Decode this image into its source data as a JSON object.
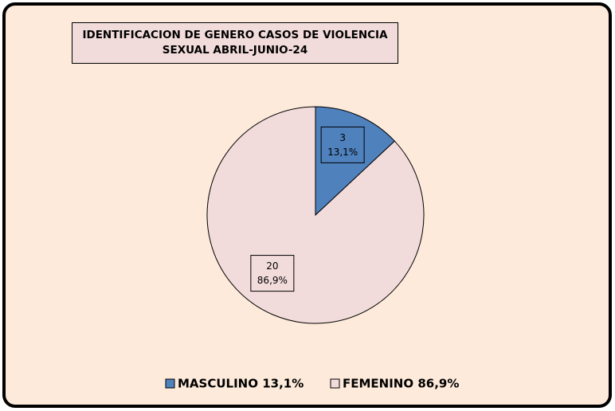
{
  "chart_data": {
    "type": "pie",
    "title": "IDENTIFICACION DE GENERO CASOS DE VIOLENCIA SEXUAL ABRIL-JUNIO-24",
    "categories": [
      "MASCULINO 13,1%",
      "FEMENINO 86,9%"
    ],
    "values": [
      3,
      20
    ],
    "percent_labels": [
      "13,1%",
      "86,9%"
    ],
    "colors": [
      "#4f81bd",
      "#f2dcdb"
    ]
  }
}
